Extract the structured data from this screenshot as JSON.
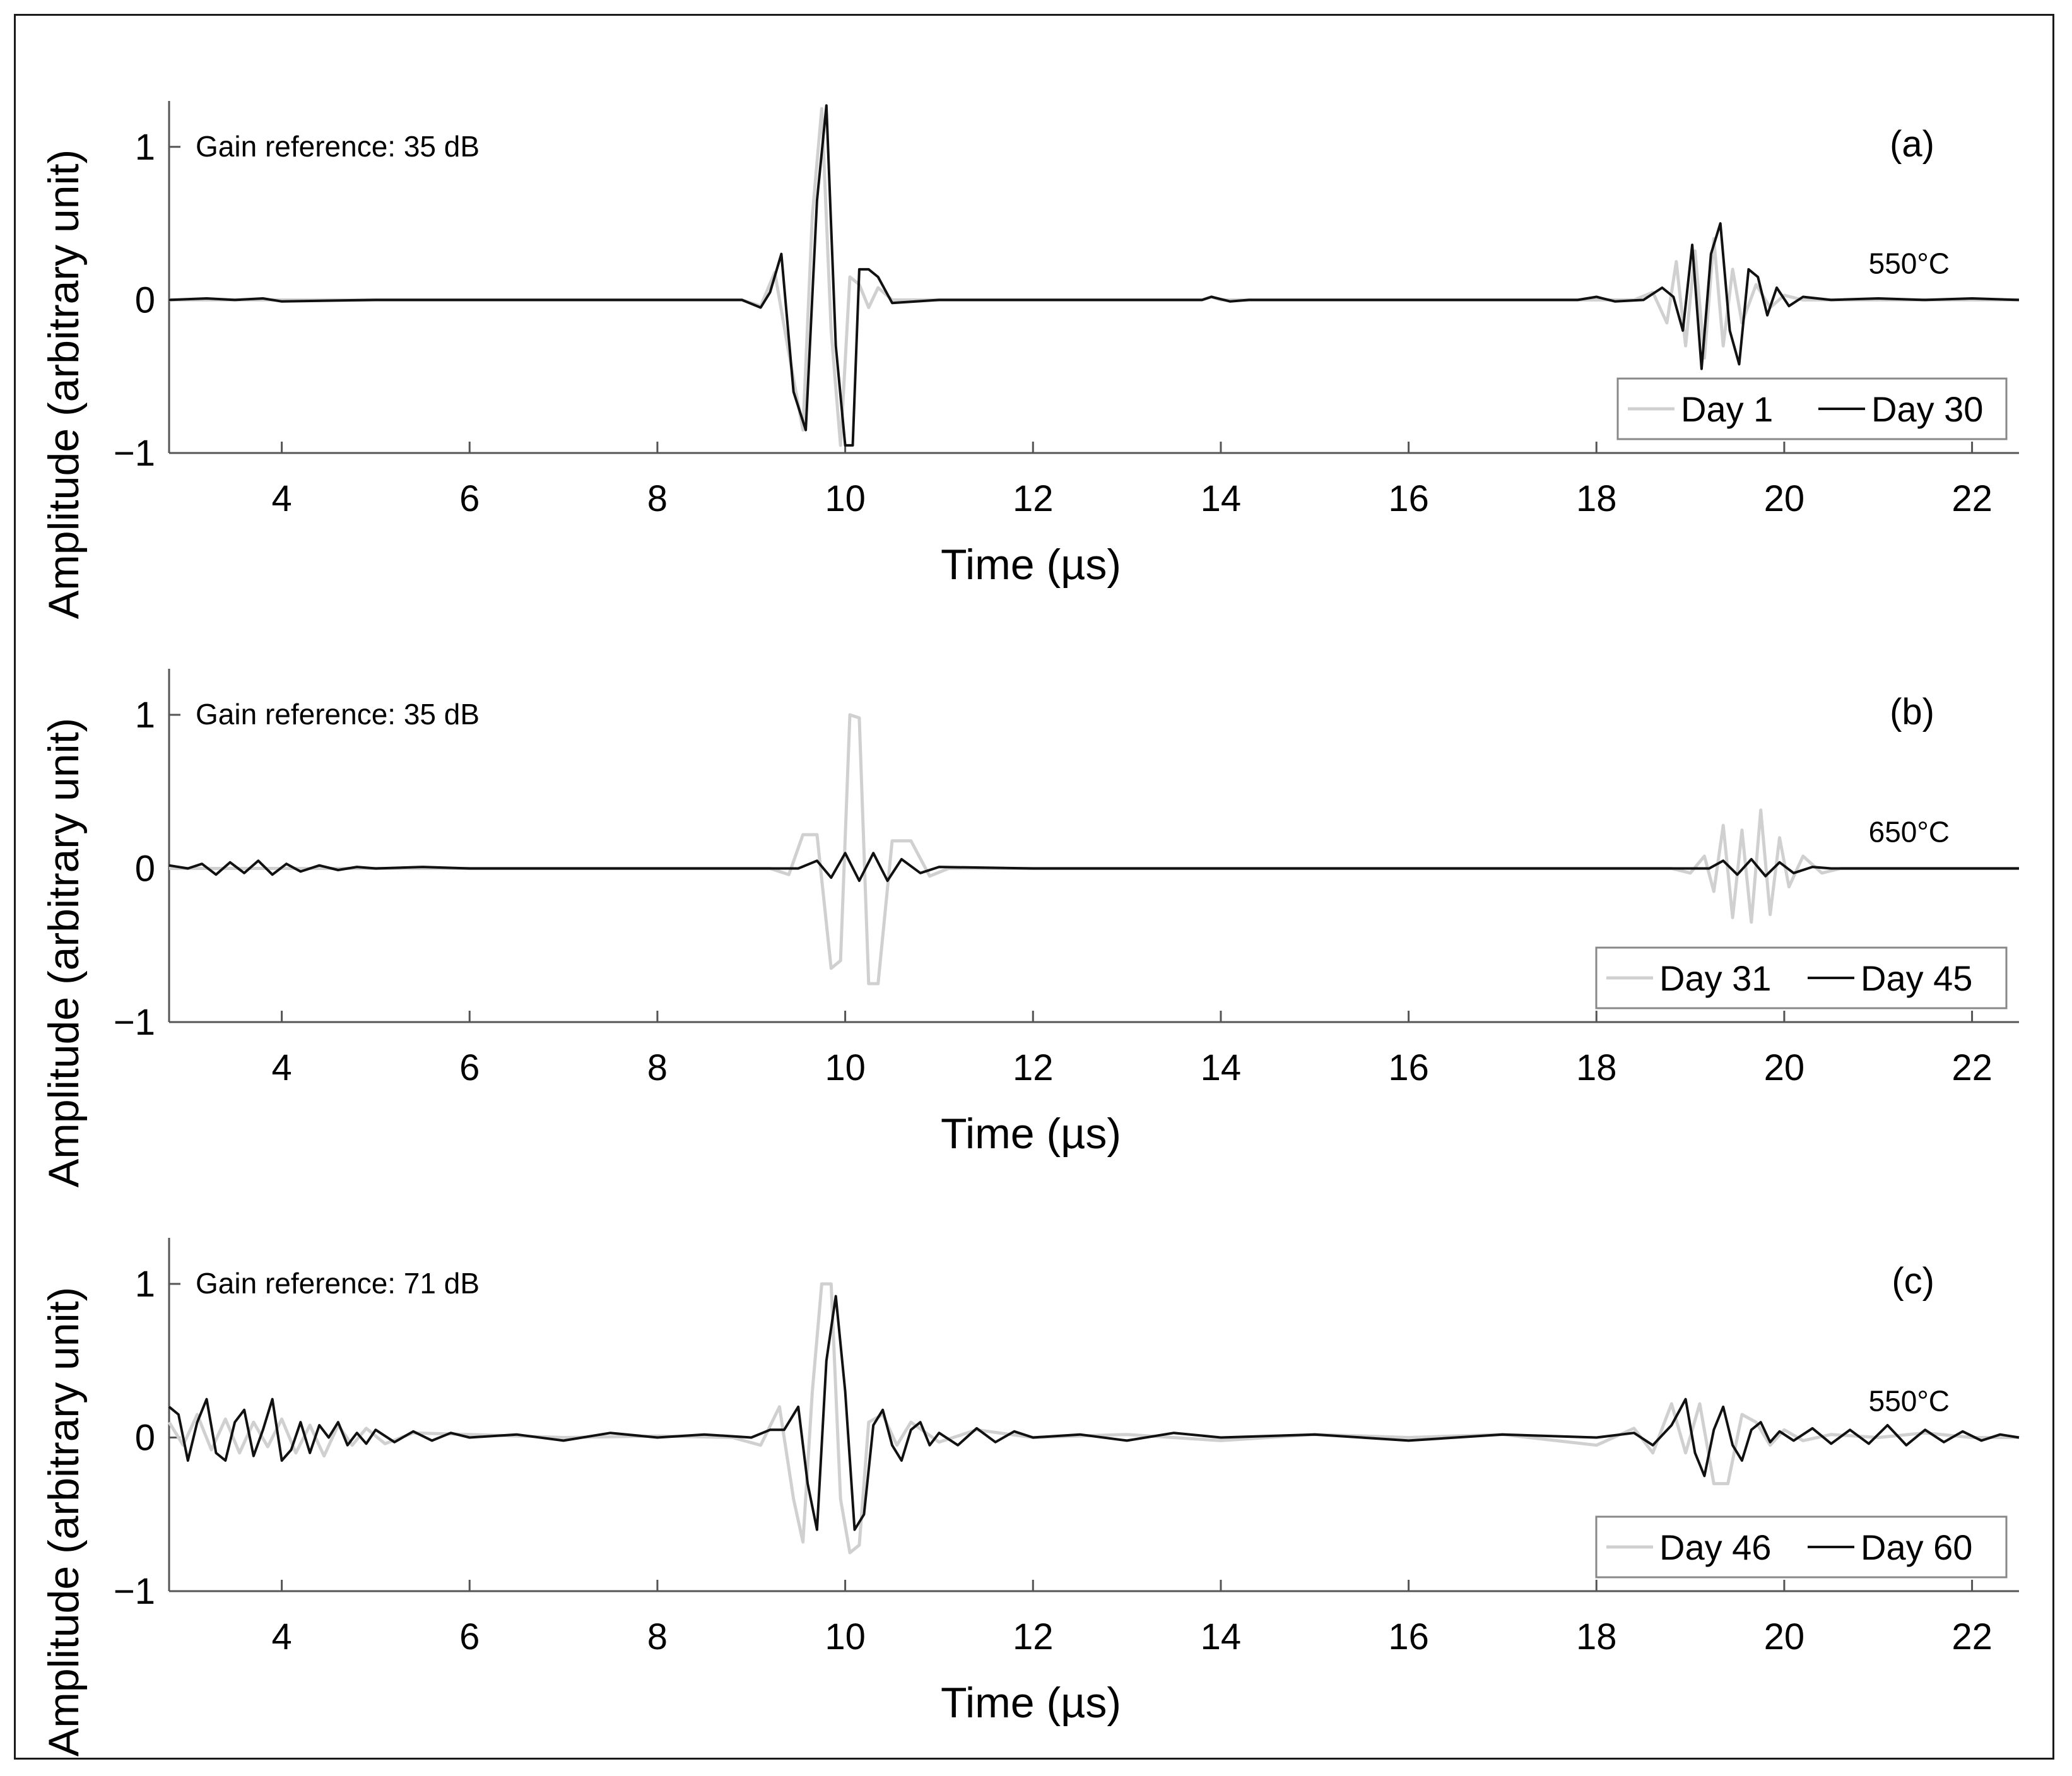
{
  "colors": {
    "day_early": "#d0d0d0",
    "day_late": "#111111",
    "axes": "#555555"
  },
  "chart_data": [
    {
      "type": "line",
      "panel_label": "(a)",
      "gain_note": "Gain reference: 35 dB",
      "temperature": "550°C",
      "xlabel": "Time (µs)",
      "ylabel": "Amplitude (arbitrary unit)",
      "xlim": [
        2.8,
        22.5
      ],
      "ylim": [
        -1,
        1.3
      ],
      "xticks": [
        "4",
        "6",
        "8",
        "10",
        "12",
        "14",
        "16",
        "18",
        "20",
        "22"
      ],
      "yticks": [
        "1",
        "0",
        "−1"
      ],
      "legend_position": "bottom-right",
      "series": [
        {
          "name": "Day 1",
          "color": "light-gray",
          "x": [
            2.8,
            8.9,
            9.1,
            9.25,
            9.4,
            9.55,
            9.65,
            9.75,
            9.85,
            9.95,
            10.05,
            10.15,
            10.25,
            10.35,
            10.5,
            10.7,
            13.8,
            13.9,
            14.0,
            18.4,
            18.6,
            18.75,
            18.85,
            18.95,
            19.05,
            19.15,
            19.25,
            19.35,
            19.45,
            19.55,
            19.7,
            19.85,
            20.0,
            20.2,
            20.5,
            22.5
          ],
          "y": [
            0.0,
            0.0,
            -0.04,
            0.18,
            -0.35,
            -0.85,
            0.55,
            1.25,
            -0.2,
            -0.95,
            0.15,
            0.1,
            -0.05,
            0.08,
            0.0,
            0.0,
            0.0,
            0.02,
            0.0,
            0.0,
            0.05,
            -0.15,
            0.25,
            -0.3,
            0.32,
            -0.38,
            0.4,
            -0.3,
            0.2,
            -0.15,
            0.1,
            -0.05,
            0.03,
            0.0,
            0.0,
            0.0
          ]
        },
        {
          "name": "Day 30",
          "color": "black",
          "x": [
            2.8,
            3.2,
            3.5,
            3.8,
            4.0,
            5.0,
            8.9,
            9.1,
            9.2,
            9.32,
            9.45,
            9.58,
            9.7,
            9.8,
            9.9,
            10.0,
            10.08,
            10.15,
            10.25,
            10.35,
            10.5,
            11.0,
            12.0,
            13.8,
            13.9,
            14.1,
            14.3,
            17.8,
            18.0,
            18.2,
            18.5,
            18.7,
            18.82,
            18.92,
            19.02,
            19.12,
            19.22,
            19.32,
            19.42,
            19.52,
            19.62,
            19.72,
            19.82,
            19.92,
            20.05,
            20.2,
            20.5,
            21.0,
            21.5,
            22.0,
            22.5
          ],
          "y": [
            0.0,
            0.01,
            0.0,
            0.01,
            -0.01,
            0.0,
            0.0,
            -0.05,
            0.05,
            0.3,
            -0.6,
            -0.85,
            0.65,
            1.27,
            -0.3,
            -0.95,
            -0.95,
            0.2,
            0.2,
            0.15,
            -0.02,
            0.0,
            0.0,
            0.0,
            0.02,
            -0.01,
            0.0,
            0.0,
            0.02,
            -0.01,
            0.0,
            0.08,
            0.02,
            -0.2,
            0.36,
            -0.45,
            0.3,
            0.5,
            -0.2,
            -0.42,
            0.2,
            0.15,
            -0.1,
            0.08,
            -0.04,
            0.02,
            0.0,
            0.01,
            0.0,
            0.01,
            0.0
          ]
        }
      ]
    },
    {
      "type": "line",
      "panel_label": "(b)",
      "gain_note": "Gain reference: 35 dB",
      "temperature": "650°C",
      "xlabel": "Time (µs)",
      "ylabel": "Amplitude (arbitrary unit)",
      "xlim": [
        2.8,
        22.5
      ],
      "ylim": [
        -1,
        1.3
      ],
      "xticks": [
        "4",
        "6",
        "8",
        "10",
        "12",
        "14",
        "16",
        "18",
        "20",
        "22"
      ],
      "yticks": [
        "1",
        "0",
        "−1"
      ],
      "legend_position": "bottom-right",
      "series": [
        {
          "name": "Day 31",
          "color": "light-gray",
          "x": [
            2.8,
            9.2,
            9.4,
            9.55,
            9.7,
            9.85,
            9.95,
            10.05,
            10.15,
            10.25,
            10.35,
            10.5,
            10.7,
            10.9,
            11.1,
            18.8,
            19.0,
            19.15,
            19.25,
            19.35,
            19.45,
            19.55,
            19.65,
            19.75,
            19.85,
            19.95,
            20.05,
            20.2,
            20.4,
            20.6,
            22.5
          ],
          "y": [
            0.0,
            0.0,
            -0.04,
            0.22,
            0.22,
            -0.65,
            -0.6,
            1.0,
            0.98,
            -0.75,
            -0.75,
            0.18,
            0.18,
            -0.05,
            0.0,
            0.0,
            -0.03,
            0.08,
            -0.15,
            0.28,
            -0.32,
            0.25,
            -0.35,
            0.38,
            -0.3,
            0.2,
            -0.12,
            0.08,
            -0.03,
            0.0,
            0.0
          ]
        },
        {
          "name": "Day 45",
          "color": "black",
          "x": [
            2.8,
            3.0,
            3.15,
            3.3,
            3.45,
            3.6,
            3.75,
            3.9,
            4.05,
            4.2,
            4.4,
            4.6,
            4.8,
            5.0,
            5.5,
            6.0,
            8.0,
            9.5,
            9.7,
            9.85,
            10.0,
            10.15,
            10.3,
            10.45,
            10.6,
            10.8,
            11.0,
            12.0,
            18.0,
            19.2,
            19.35,
            19.5,
            19.65,
            19.8,
            19.95,
            20.1,
            20.3,
            20.5,
            21.0,
            22.5
          ],
          "y": [
            0.02,
            0.0,
            0.03,
            -0.04,
            0.04,
            -0.03,
            0.05,
            -0.04,
            0.03,
            -0.02,
            0.02,
            -0.01,
            0.01,
            0.0,
            0.01,
            0.0,
            0.0,
            0.0,
            0.05,
            -0.06,
            0.1,
            -0.08,
            0.1,
            -0.08,
            0.06,
            -0.03,
            0.01,
            0.0,
            0.0,
            0.0,
            0.05,
            -0.04,
            0.06,
            -0.05,
            0.04,
            -0.03,
            0.01,
            0.0,
            0.0,
            0.0
          ]
        }
      ]
    },
    {
      "type": "line",
      "panel_label": "(c)",
      "gain_note": "Gain reference: 71 dB",
      "temperature": "550°C",
      "xlabel": "Time (µs)",
      "ylabel": "Amplitude (arbitrary unit)",
      "xlim": [
        2.8,
        22.5
      ],
      "ylim": [
        -1,
        1.3
      ],
      "xticks": [
        "4",
        "6",
        "8",
        "10",
        "12",
        "14",
        "16",
        "18",
        "20",
        "22"
      ],
      "yticks": [
        "1",
        "0",
        "−1"
      ],
      "legend_position": "bottom-right",
      "series": [
        {
          "name": "Day 46",
          "color": "light-gray",
          "x": [
            2.8,
            2.95,
            3.1,
            3.25,
            3.4,
            3.55,
            3.7,
            3.85,
            4.0,
            4.15,
            4.3,
            4.45,
            4.6,
            4.75,
            4.9,
            5.1,
            5.4,
            6.0,
            7.0,
            8.0,
            8.8,
            9.1,
            9.3,
            9.45,
            9.55,
            9.65,
            9.75,
            9.85,
            9.95,
            10.05,
            10.15,
            10.25,
            10.4,
            10.55,
            10.7,
            11.0,
            11.4,
            12.0,
            13.0,
            14.0,
            15.0,
            16.0,
            17.0,
            18.0,
            18.4,
            18.6,
            18.8,
            18.95,
            19.1,
            19.25,
            19.4,
            19.55,
            19.7,
            19.85,
            20.0,
            20.2,
            20.5,
            21.0,
            21.5,
            22.0,
            22.5
          ],
          "y": [
            0.1,
            -0.05,
            0.15,
            -0.08,
            0.12,
            -0.1,
            0.1,
            -0.06,
            0.12,
            -0.1,
            0.08,
            -0.12,
            0.08,
            -0.05,
            0.06,
            -0.04,
            0.03,
            0.02,
            0.0,
            0.01,
            0.0,
            -0.05,
            0.2,
            -0.4,
            -0.68,
            0.3,
            1.0,
            1.0,
            -0.4,
            -0.75,
            -0.7,
            0.1,
            0.15,
            -0.05,
            0.1,
            -0.03,
            0.05,
            0.0,
            0.02,
            -0.02,
            0.02,
            0.0,
            0.02,
            -0.05,
            0.06,
            -0.1,
            0.22,
            -0.1,
            0.22,
            -0.3,
            -0.3,
            0.15,
            0.1,
            -0.05,
            0.05,
            -0.02,
            0.02,
            0.0,
            0.03,
            0.0,
            0.0
          ]
        },
        {
          "name": "Day 60",
          "color": "black",
          "x": [
            2.8,
            2.9,
            3.0,
            3.1,
            3.2,
            3.3,
            3.4,
            3.5,
            3.6,
            3.7,
            3.8,
            3.9,
            4.0,
            4.1,
            4.2,
            4.3,
            4.4,
            4.5,
            4.6,
            4.7,
            4.8,
            4.9,
            5.0,
            5.2,
            5.4,
            5.6,
            5.8,
            6.0,
            6.5,
            7.0,
            7.5,
            8.0,
            8.5,
            9.0,
            9.2,
            9.35,
            9.5,
            9.6,
            9.7,
            9.8,
            9.9,
            10.0,
            10.1,
            10.2,
            10.3,
            10.4,
            10.5,
            10.6,
            10.7,
            10.8,
            10.9,
            11.0,
            11.2,
            11.4,
            11.6,
            11.8,
            12.0,
            12.5,
            13.0,
            13.5,
            14.0,
            15.0,
            16.0,
            17.0,
            18.0,
            18.4,
            18.6,
            18.8,
            18.95,
            19.05,
            19.15,
            19.25,
            19.35,
            19.45,
            19.55,
            19.65,
            19.75,
            19.85,
            19.95,
            20.1,
            20.3,
            20.5,
            20.7,
            20.9,
            21.1,
            21.3,
            21.5,
            21.7,
            21.9,
            22.1,
            22.3,
            22.5
          ],
          "y": [
            0.2,
            0.15,
            -0.15,
            0.1,
            0.25,
            -0.1,
            -0.15,
            0.1,
            0.18,
            -0.12,
            0.05,
            0.25,
            -0.15,
            -0.08,
            0.1,
            -0.1,
            0.08,
            0.0,
            0.1,
            -0.05,
            0.03,
            -0.04,
            0.05,
            -0.03,
            0.04,
            -0.02,
            0.03,
            0.0,
            0.02,
            -0.02,
            0.03,
            0.0,
            0.02,
            0.0,
            0.05,
            0.05,
            0.2,
            -0.3,
            -0.6,
            0.5,
            0.92,
            0.3,
            -0.6,
            -0.5,
            0.08,
            0.18,
            -0.05,
            -0.15,
            0.05,
            0.1,
            -0.05,
            0.03,
            -0.05,
            0.06,
            -0.03,
            0.04,
            0.0,
            0.02,
            -0.02,
            0.03,
            0.0,
            0.02,
            -0.02,
            0.02,
            0.0,
            0.03,
            -0.05,
            0.08,
            0.25,
            -0.1,
            -0.25,
            0.05,
            0.2,
            -0.05,
            -0.15,
            0.05,
            0.1,
            -0.03,
            0.04,
            -0.02,
            0.06,
            -0.04,
            0.05,
            -0.04,
            0.08,
            -0.05,
            0.05,
            -0.03,
            0.04,
            -0.02,
            0.02,
            0.0
          ]
        }
      ]
    }
  ]
}
